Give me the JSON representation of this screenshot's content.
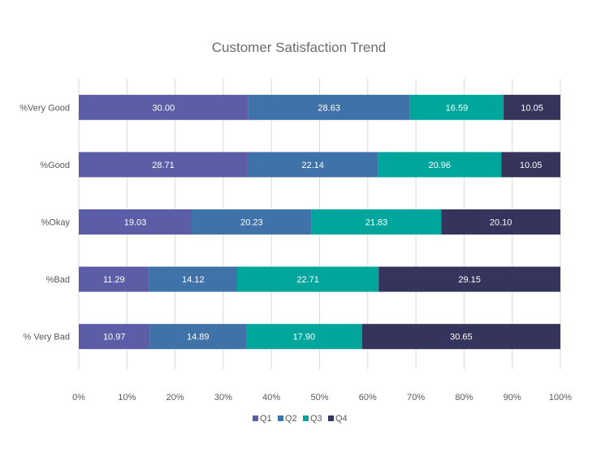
{
  "chart_data": {
    "type": "bar",
    "orientation": "horizontal",
    "stacking": "percent",
    "title": "Customer Satisfaction Trend",
    "categories": [
      "%Very Good",
      "%Good",
      "%Okay",
      "%Bad",
      "% Very Bad"
    ],
    "series": [
      {
        "name": "Q1",
        "color": "#5b5ea6",
        "values": [
          30.0,
          28.71,
          19.03,
          11.29,
          10.97
        ]
      },
      {
        "name": "Q2",
        "color": "#3f72a8",
        "values": [
          28.63,
          22.14,
          20.23,
          14.12,
          14.89
        ]
      },
      {
        "name": "Q3",
        "color": "#00a59c",
        "values": [
          16.59,
          20.96,
          21.83,
          22.71,
          17.9
        ]
      },
      {
        "name": "Q4",
        "color": "#35345c",
        "values": [
          10.05,
          10.05,
          20.1,
          29.15,
          30.65
        ]
      }
    ],
    "x_ticks": [
      "0%",
      "10%",
      "20%",
      "30%",
      "40%",
      "50%",
      "60%",
      "70%",
      "80%",
      "90%",
      "100%"
    ],
    "xlim": [
      0,
      100
    ],
    "grid": true,
    "legend": "bottom-center"
  }
}
